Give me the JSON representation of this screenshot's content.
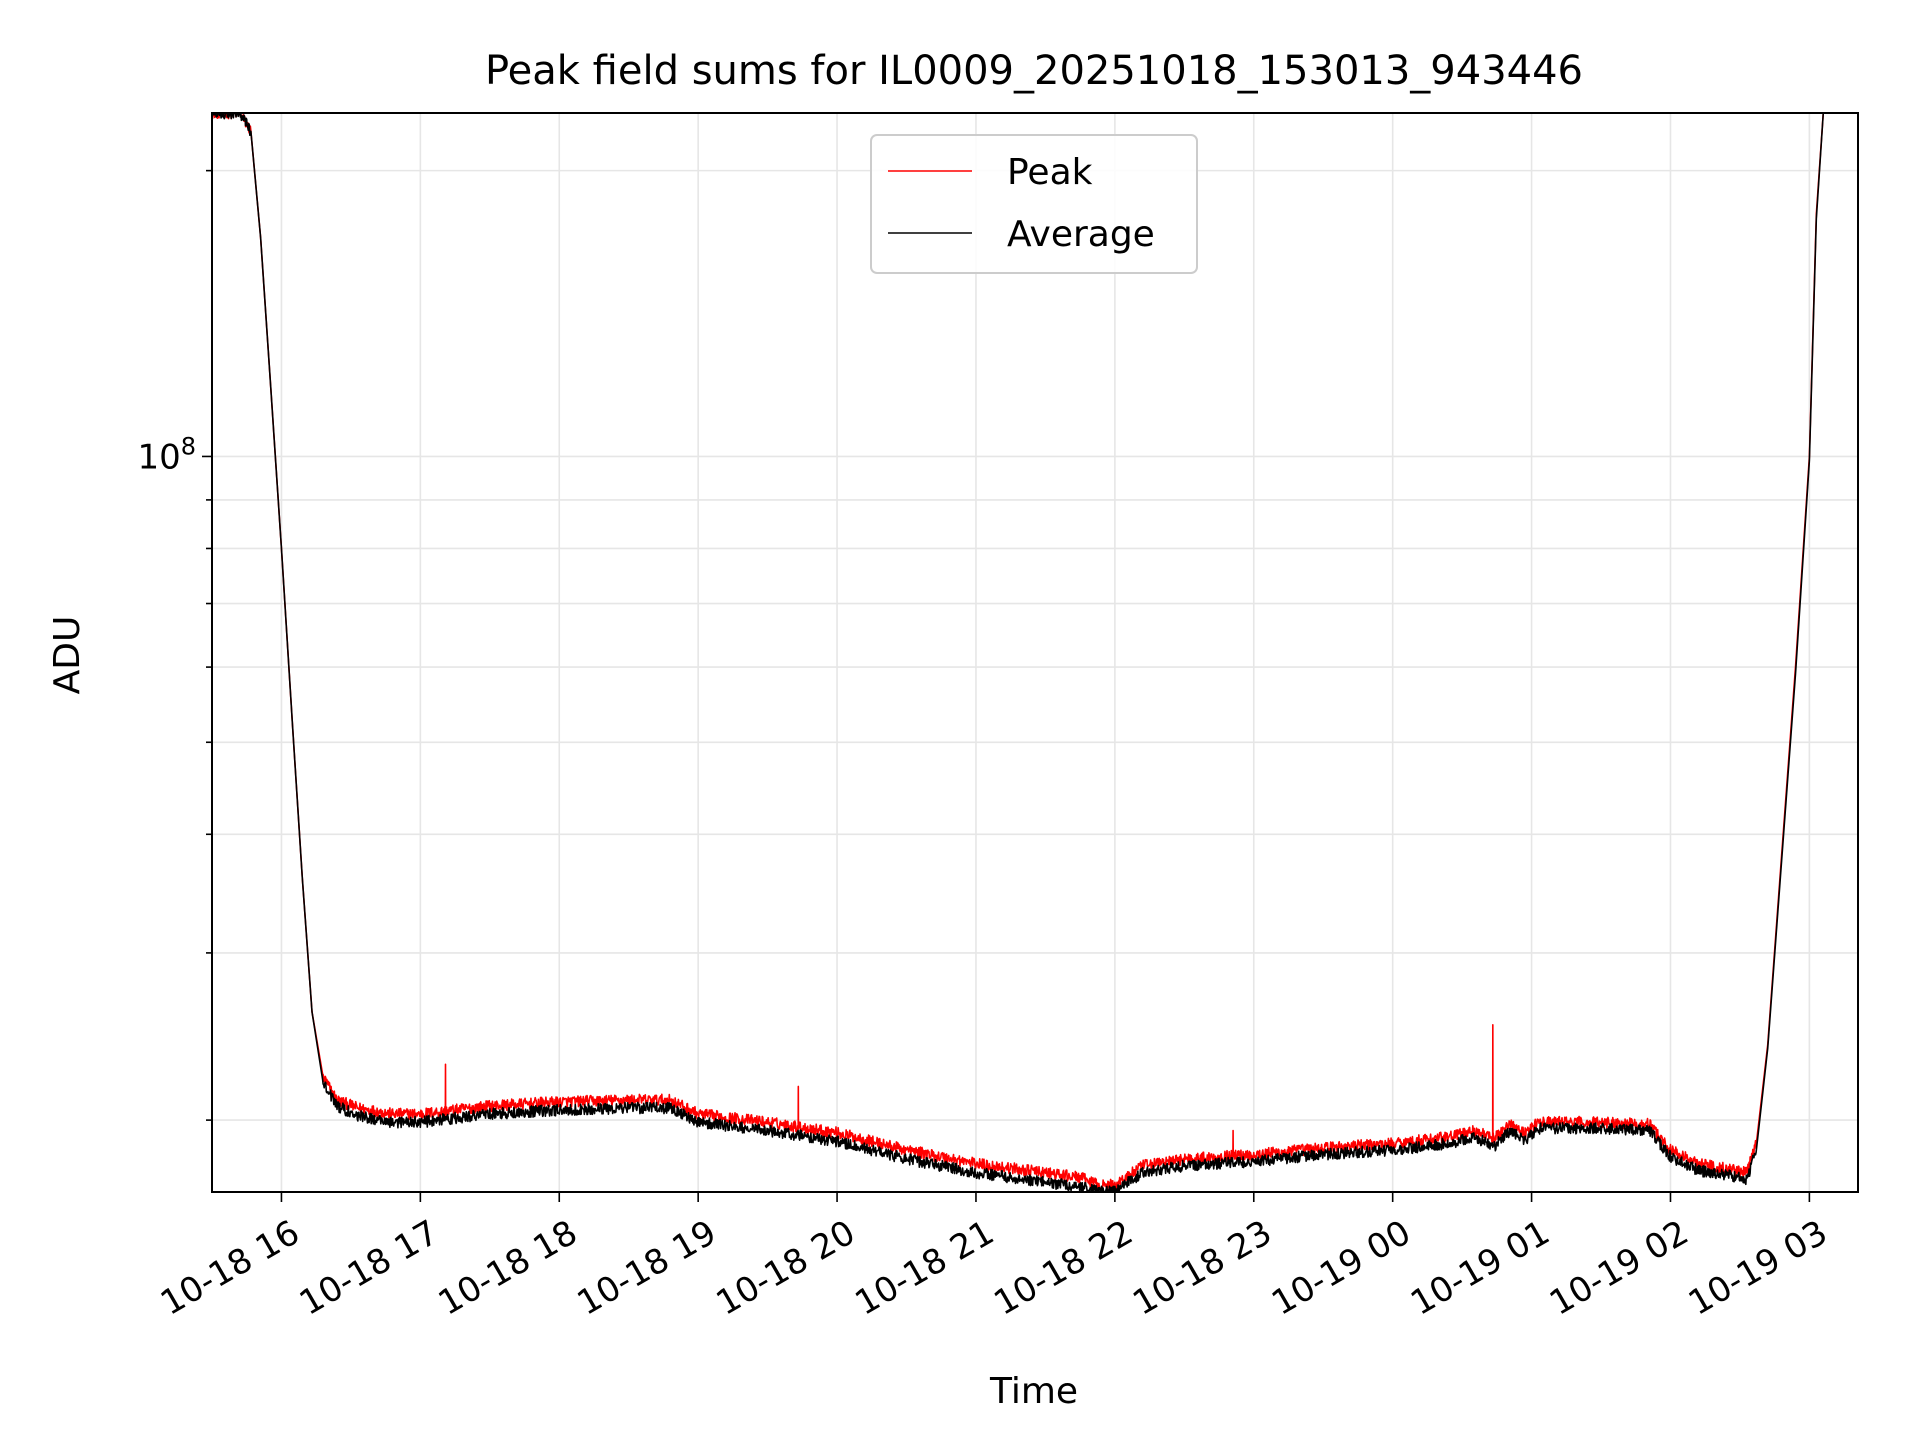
{
  "chart_data": {
    "type": "line",
    "title": "Peak field sums for IL0009_20251018_153013_943446",
    "xlabel": "Time",
    "ylabel": "ADU",
    "y_scale": "log",
    "ylim": [
      16800000,
      230000000
    ],
    "xlim_hours_since_2025-10-18_00:00": [
      15.5,
      27.35
    ],
    "grid": true,
    "legend_position": "top-center",
    "x_ticks": [
      {
        "hours": 16,
        "label": "10-18 16"
      },
      {
        "hours": 17,
        "label": "10-18 17"
      },
      {
        "hours": 18,
        "label": "10-18 18"
      },
      {
        "hours": 19,
        "label": "10-18 19"
      },
      {
        "hours": 20,
        "label": "10-18 20"
      },
      {
        "hours": 21,
        "label": "10-18 21"
      },
      {
        "hours": 22,
        "label": "10-18 22"
      },
      {
        "hours": 23,
        "label": "10-18 23"
      },
      {
        "hours": 24,
        "label": "10-19 00"
      },
      {
        "hours": 25,
        "label": "10-19 01"
      },
      {
        "hours": 26,
        "label": "10-19 02"
      },
      {
        "hours": 27,
        "label": "10-19 03"
      }
    ],
    "y_major_ticks": [
      {
        "value": 100000000,
        "label_base": "10",
        "label_exp": "8"
      }
    ],
    "y_minor_ticks": [
      20000000,
      30000000,
      40000000,
      50000000,
      60000000,
      70000000,
      80000000,
      90000000,
      200000000
    ],
    "series": [
      {
        "name": "Peak",
        "color": "#ff0000",
        "x_hours": [
          15.5,
          15.7,
          15.78,
          15.85,
          15.92,
          16.0,
          16.08,
          16.15,
          16.22,
          16.3,
          16.4,
          16.55,
          16.8,
          17.0,
          17.5,
          18.0,
          18.5,
          18.8,
          19.0,
          19.5,
          20.0,
          20.5,
          21.0,
          21.5,
          21.75,
          21.9,
          22.0,
          22.2,
          22.5,
          23.0,
          23.5,
          24.0,
          24.4,
          24.6,
          24.72,
          24.85,
          24.95,
          25.05,
          25.5,
          25.85,
          26.0,
          26.1,
          26.2,
          26.4,
          26.55,
          26.62,
          26.7,
          26.8,
          26.9,
          27.0,
          27.05,
          27.1
        ],
        "values": [
          230000000,
          230000000,
          220000000,
          170000000,
          120000000,
          80000000,
          52000000,
          36000000,
          26000000,
          22200000,
          21000000,
          20600000,
          20300000,
          20300000,
          20700000,
          20900000,
          21000000,
          21000000,
          20300000,
          19900000,
          19400000,
          18600000,
          18000000,
          17600000,
          17400000,
          17050000,
          17100000,
          17900000,
          18200000,
          18400000,
          18700000,
          18900000,
          19200000,
          19500000,
          19100000,
          19800000,
          19400000,
          19900000,
          19900000,
          19800000,
          18600000,
          18300000,
          18000000,
          17800000,
          17600000,
          19000000,
          24000000,
          38000000,
          60000000,
          100000000,
          180000000,
          230000000
        ],
        "spikes": [
          {
            "x_hours": 17.18,
            "value": 22900000
          },
          {
            "x_hours": 19.72,
            "value": 21700000
          },
          {
            "x_hours": 22.85,
            "value": 19500000
          },
          {
            "x_hours": 24.72,
            "value": 25200000
          }
        ]
      },
      {
        "name": "Average",
        "color": "#000000",
        "x_hours": [
          15.5,
          15.7,
          15.78,
          15.85,
          15.92,
          16.0,
          16.08,
          16.15,
          16.22,
          16.3,
          16.4,
          16.55,
          16.8,
          17.0,
          17.5,
          18.0,
          18.5,
          18.8,
          19.0,
          19.5,
          20.0,
          20.5,
          21.0,
          21.5,
          21.75,
          21.9,
          22.0,
          22.2,
          22.5,
          23.0,
          23.5,
          24.0,
          24.4,
          24.6,
          24.72,
          24.85,
          24.95,
          25.05,
          25.5,
          25.85,
          26.0,
          26.1,
          26.2,
          26.4,
          26.55,
          26.62,
          26.7,
          26.8,
          26.9,
          27.0,
          27.05,
          27.1
        ],
        "values": [
          230000000,
          230000000,
          220000000,
          170000000,
          120000000,
          80000000,
          52000000,
          36000000,
          26000000,
          21900000,
          20700000,
          20200000,
          19900000,
          19900000,
          20300000,
          20500000,
          20600000,
          20600000,
          19900000,
          19500000,
          19000000,
          18200000,
          17600000,
          17200000,
          17000000,
          16800000,
          16850000,
          17600000,
          17900000,
          18100000,
          18400000,
          18600000,
          18900000,
          19200000,
          18700000,
          19500000,
          19000000,
          19600000,
          19600000,
          19500000,
          18300000,
          18000000,
          17700000,
          17500000,
          17300000,
          18700000,
          23800000,
          37500000,
          59000000,
          99000000,
          178000000,
          230000000
        ]
      }
    ]
  }
}
